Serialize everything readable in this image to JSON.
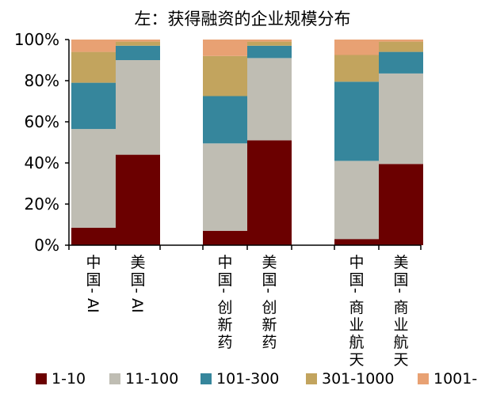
{
  "chart_data": {
    "type": "bar",
    "stacked": true,
    "title": "左：获得融资的企业规模分布",
    "categories": [
      "中国-AI",
      "美国-AI",
      "中国-创新药",
      "美国-创新药",
      "中国-商业航天",
      "美国-商业航天"
    ],
    "group_breaks_after": [
      1,
      3
    ],
    "y_ticks": [
      "0%",
      "20%",
      "40%",
      "60%",
      "80%",
      "100%"
    ],
    "ylim": [
      0,
      100
    ],
    "series": [
      {
        "name": "1-10",
        "color": "#6b0000",
        "values": [
          8.5,
          44,
          7,
          51,
          3,
          39.5
        ]
      },
      {
        "name": "11-100",
        "color": "#bfbdb3",
        "values": [
          48,
          46,
          42.5,
          40,
          38,
          44
        ]
      },
      {
        "name": "101-300",
        "color": "#36869c",
        "values": [
          22.5,
          7,
          23,
          6,
          38.5,
          10.5
        ]
      },
      {
        "name": "301-1000",
        "color": "#c2a45e",
        "values": [
          15,
          2,
          19.5,
          2,
          13,
          5
        ]
      },
      {
        "name": "1001-",
        "color": "#e8a173",
        "values": [
          6,
          1,
          8,
          1,
          7.5,
          1
        ]
      }
    ],
    "legend_position": "bottom"
  }
}
